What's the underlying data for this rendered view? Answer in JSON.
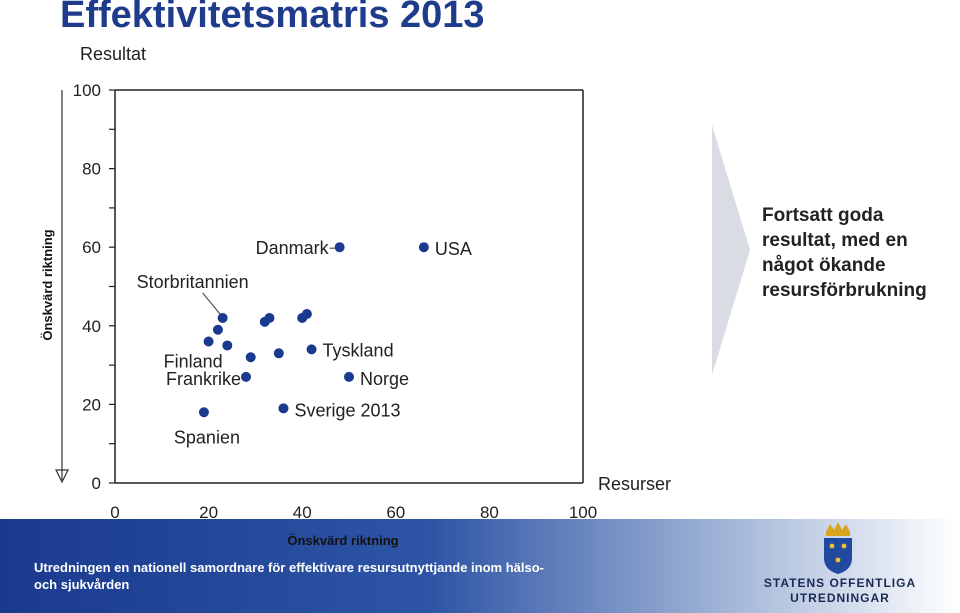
{
  "title": "Effektivitetsmatris 2013",
  "annotation": "Fortsatt goda resultat, med en något ökande resursförbrukning",
  "footer": {
    "text": "Utredningen en nationell samordnare för effektivare resursutnyttjande inom hälso- och sjukvården"
  },
  "logo": {
    "line1": "STATENS OFFENTLIGA",
    "line2": "UTREDNINGAR"
  },
  "colors": {
    "title": "#1f3c8c",
    "point": "#1a3a8f",
    "arrow": "#d9dde3"
  },
  "chart_data": {
    "type": "scatter",
    "ylabel": "Resultat",
    "xlabel": "Resurser",
    "y_direction_label": "Önskvärd riktning",
    "x_direction_label": "Önskvärd riktning",
    "xlim": [
      0,
      100
    ],
    "ylim": [
      0,
      100
    ],
    "x_ticks": [
      "0",
      "20",
      "40",
      "60",
      "80",
      "100"
    ],
    "y_ticks": [
      "0",
      "20",
      "40",
      "60",
      "80",
      "100"
    ],
    "grid": false,
    "points": [
      {
        "x": 19,
        "y": 18,
        "label": "Spanien"
      },
      {
        "x": 28,
        "y": 27,
        "label": "Frankrike"
      },
      {
        "x": 20,
        "y": 36,
        "label": "Finland"
      },
      {
        "x": 23,
        "y": 42,
        "label": "Storbritannien"
      },
      {
        "x": 22,
        "y": 39
      },
      {
        "x": 24,
        "y": 35
      },
      {
        "x": 29,
        "y": 32
      },
      {
        "x": 32,
        "y": 41
      },
      {
        "x": 33,
        "y": 42
      },
      {
        "x": 35,
        "y": 33
      },
      {
        "x": 36,
        "y": 19,
        "label": "Sverige 2013"
      },
      {
        "x": 40,
        "y": 42
      },
      {
        "x": 41,
        "y": 43
      },
      {
        "x": 42,
        "y": 34,
        "label": "Tyskland"
      },
      {
        "x": 50,
        "y": 27,
        "label": "Norge"
      },
      {
        "x": 48,
        "y": 60,
        "label": "Danmark"
      },
      {
        "x": 66,
        "y": 60,
        "label": "USA"
      }
    ]
  }
}
